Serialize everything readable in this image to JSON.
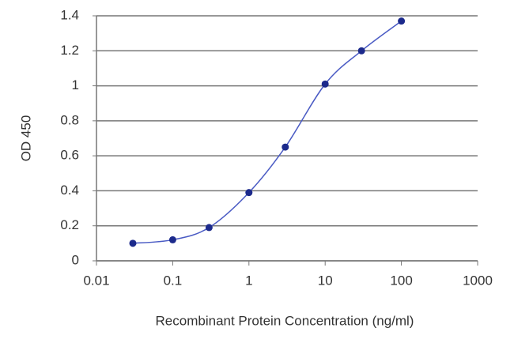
{
  "chart_data": {
    "type": "line",
    "x_label": "Recombinant Protein Concentration (ng/ml)",
    "y_label": "OD 450",
    "x": [
      0.03,
      0.1,
      0.3,
      1,
      3,
      10,
      30,
      100
    ],
    "series": [
      {
        "color": "#1c2a8c",
        "values": [
          0.1,
          0.12,
          0.19,
          0.39,
          0.65,
          1.01,
          1.2,
          1.37
        ]
      }
    ],
    "xlim": [
      0.01,
      1000
    ],
    "xticks": [
      0.01,
      0.1,
      1,
      10,
      100,
      1000
    ],
    "xscale": "log",
    "ylim": [
      0,
      1.4
    ],
    "yticks": [
      0,
      0.2,
      0.4,
      0.6,
      0.8,
      1,
      1.2,
      1.4
    ],
    "grid": true
  }
}
